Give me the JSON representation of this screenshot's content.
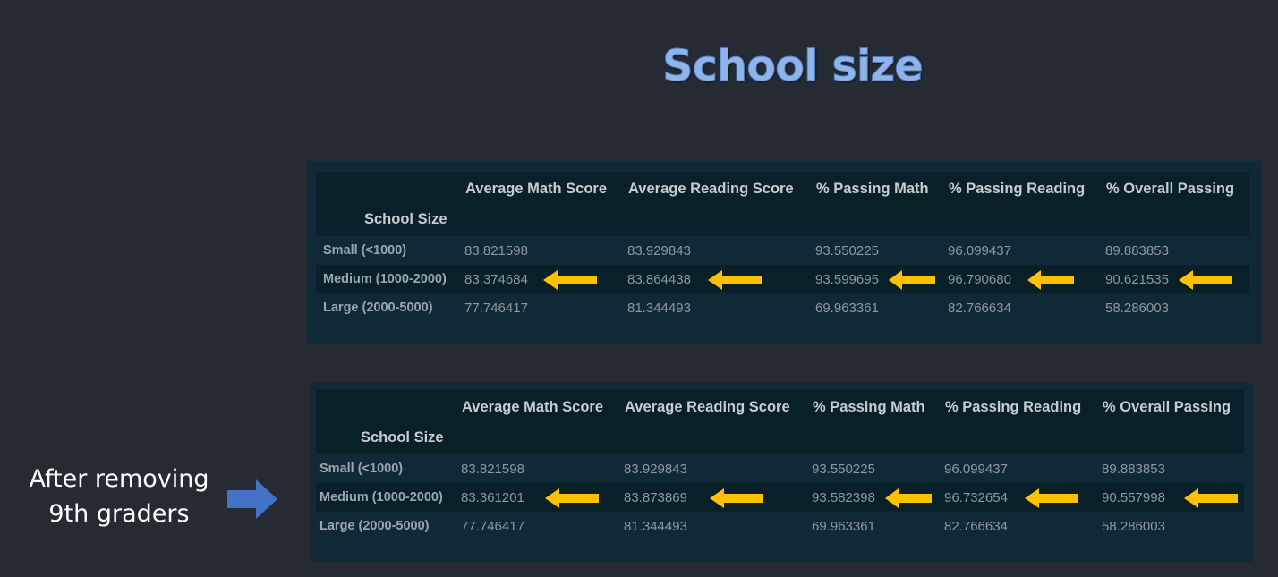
{
  "slide_title": "School size",
  "side_label_line1": "After removing",
  "side_label_line2": "9th graders",
  "colors": {
    "arrow_yellow": "#ffc000",
    "arrow_blue": "#4472c4"
  },
  "table_before": {
    "index_name": "School Size",
    "columns": [
      "Average Math Score",
      "Average Reading Score",
      "% Passing Math",
      "% Passing Reading",
      "% Overall Passing"
    ],
    "rows": [
      {
        "label": "Small (<1000)",
        "values": [
          "83.821598",
          "83.929843",
          "93.550225",
          "96.099437",
          "89.883853"
        ]
      },
      {
        "label": "Medium (1000-2000)",
        "values": [
          "83.374684",
          "83.864438",
          "93.599695",
          "96.790680",
          "90.621535"
        ]
      },
      {
        "label": "Large (2000-5000)",
        "values": [
          "77.746417",
          "81.344493",
          "69.963361",
          "82.766634",
          "58.286003"
        ]
      }
    ]
  },
  "table_after": {
    "index_name": "School Size",
    "columns": [
      "Average Math Score",
      "Average Reading Score",
      "% Passing Math",
      "% Passing Reading",
      "% Overall Passing"
    ],
    "rows": [
      {
        "label": "Small (<1000)",
        "values": [
          "83.821598",
          "83.929843",
          "93.550225",
          "96.099437",
          "89.883853"
        ]
      },
      {
        "label": "Medium (1000-2000)",
        "values": [
          "83.361201",
          "83.873869",
          "93.582398",
          "96.732654",
          "90.557998"
        ]
      },
      {
        "label": "Large (2000-5000)",
        "values": [
          "77.746417",
          "81.344493",
          "69.963361",
          "82.766634",
          "58.286003"
        ]
      }
    ]
  }
}
